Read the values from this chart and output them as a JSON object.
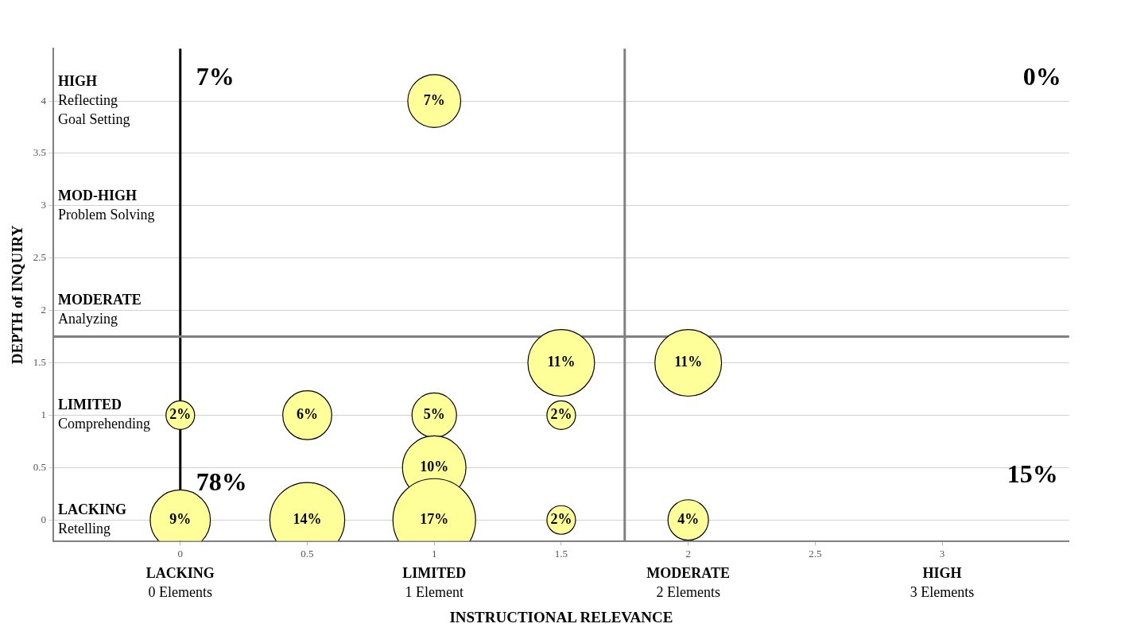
{
  "chart_data": {
    "type": "bubble",
    "xlabel": "INSTRUCTIONAL RELEVANCE",
    "ylabel": "DEPTH of INQUIRY",
    "xlim": [
      -0.5,
      3.5
    ],
    "ylim": [
      -0.2,
      4.5
    ],
    "xticks": [
      0,
      0.5,
      1,
      1.5,
      2,
      2.5,
      3
    ],
    "yticks": [
      0,
      0.5,
      1,
      1.5,
      2,
      2.5,
      3,
      3.5,
      4
    ],
    "series": [
      {
        "color": "#ffff99",
        "x": [
          1,
          1.5,
          2,
          0,
          0.5,
          1,
          1.5,
          1,
          0,
          0.5,
          1,
          1.5,
          2
        ],
        "values": [
          4,
          1.5,
          1.5,
          1,
          1,
          1,
          1,
          0.5,
          0,
          0,
          0,
          0,
          0
        ],
        "sizes": [
          0.41,
          0.65,
          0.65,
          0.12,
          0.35,
          0.29,
          0.12,
          0.59,
          0.53,
          0.82,
          1,
          0.12,
          0.24
        ]
      }
    ],
    "ref_lines": [
      {
        "axis": "x",
        "value": 0,
        "color": "#000000"
      },
      {
        "axis": "x",
        "value": 1.75,
        "color": "#808080"
      },
      {
        "axis": "y",
        "value": 1.75,
        "color": "#808080"
      }
    ],
    "annotations": [
      "7%",
      "0%",
      "78%",
      "15%",
      "LACKING\n0 Elements",
      "LIMITED\n1 Element",
      "MODERATE\n2 Elements",
      "HIGH\n3 Elements",
      "HIGH\nReflecting\nGoal Setting",
      "MOD-HIGH\nProblem Solving",
      "MODERATE\nAnalyzing",
      "LIMITED\nComprehending",
      "LACKING\nRetelling",
      {
        "text": "7%",
        "x": 1,
        "y": 4
      },
      {
        "text": "11%",
        "x": 1.5,
        "y": 1.5
      },
      {
        "text": "11%",
        "x": 2,
        "y": 1.5
      },
      {
        "text": "2%",
        "x": 0,
        "y": 1
      },
      {
        "text": "6%",
        "x": 0.5,
        "y": 1
      },
      {
        "text": "5%",
        "x": 1,
        "y": 1
      },
      {
        "text": "2%",
        "x": 1.5,
        "y": 1
      },
      {
        "text": "10%",
        "x": 1,
        "y": 0.5
      },
      {
        "text": "9%",
        "x": 0,
        "y": 0
      },
      {
        "text": "14%",
        "x": 0.5,
        "y": 0
      },
      {
        "text": "17%",
        "x": 1,
        "y": 0
      },
      {
        "text": "2%",
        "x": 1.5,
        "y": 0
      },
      {
        "text": "4%",
        "x": 2,
        "y": 0
      }
    ],
    "grid": "y",
    "legend": false
  }
}
